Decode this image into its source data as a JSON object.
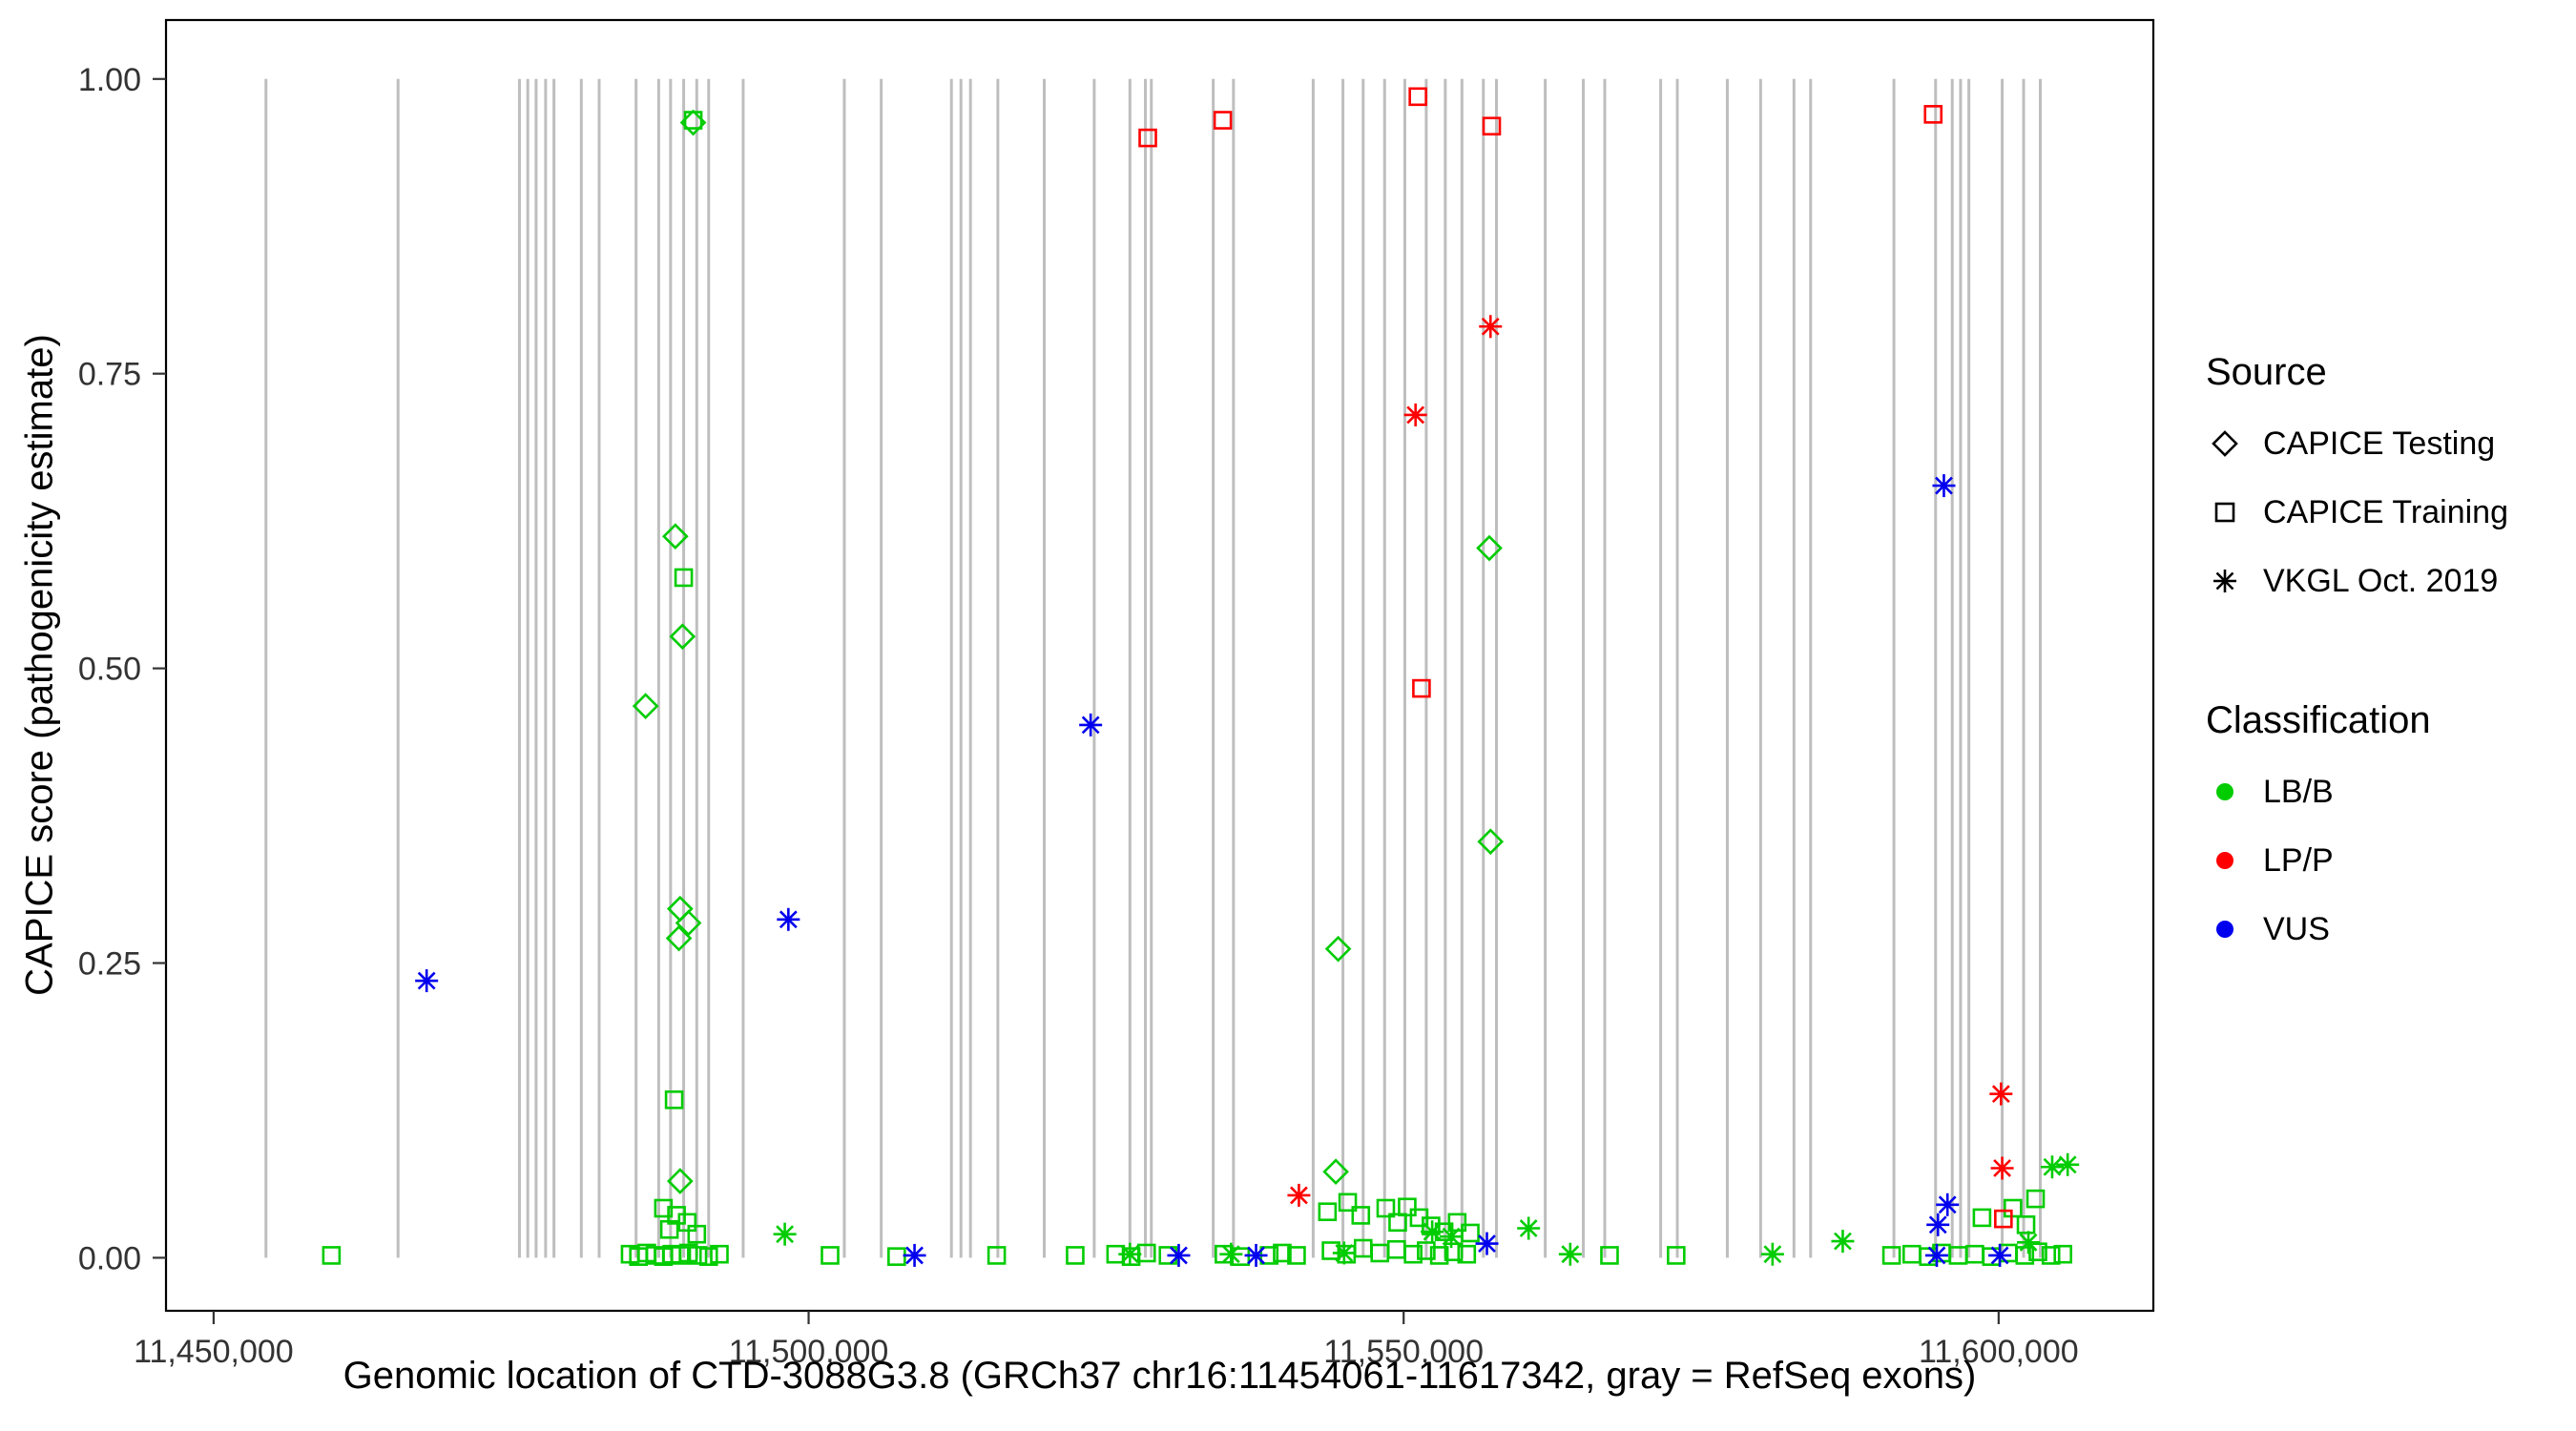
{
  "legend": {
    "source": {
      "title": "Source",
      "items": [
        {
          "label": "CAPICE Testing",
          "marker": "diamond"
        },
        {
          "label": "CAPICE Training",
          "marker": "square"
        },
        {
          "label": "VKGL Oct. 2019",
          "marker": "asterisk"
        }
      ]
    },
    "classification": {
      "title": "Classification",
      "items": [
        {
          "label": "LB/B",
          "color": "#00CC00"
        },
        {
          "label": "LP/P",
          "color": "#FF0000"
        },
        {
          "label": "VUS",
          "color": "#0000EE"
        }
      ]
    }
  },
  "chart_data": {
    "type": "scatter",
    "title": "",
    "xlabel": "Genomic location of CTD-3088G3.8 (GRCh37 chr16:11454061-11617342, gray = RefSeq exons)",
    "ylabel": "CAPICE score (pathogenicity estimate)",
    "xlim": [
      11446000,
      11613000
    ],
    "ylim": [
      -0.045,
      1.05
    ],
    "grid": "off",
    "legend_position": "right",
    "panel_border_color": "#000000",
    "tick_text_color": "#333333",
    "exon_color": "#BEBEBE",
    "exon_note": "gray vertical lines = RefSeq exons, drawn from y=0 to y=1",
    "x_ticks": [
      {
        "value": 11450000,
        "label": "11,450,000"
      },
      {
        "value": 11500000,
        "label": "11,500,000"
      },
      {
        "value": 11550000,
        "label": "11,550,000"
      },
      {
        "value": 11600000,
        "label": "11,600,000"
      }
    ],
    "y_ticks": [
      {
        "value": 0.0,
        "label": "0.00"
      },
      {
        "value": 0.25,
        "label": "0.25"
      },
      {
        "value": 0.5,
        "label": "0.50"
      },
      {
        "value": 0.75,
        "label": "0.75"
      },
      {
        "value": 1.0,
        "label": "1.00"
      }
    ],
    "exons": [
      11454400,
      11465500,
      11475700,
      11476400,
      11477100,
      11477900,
      11478600,
      11480900,
      11482400,
      11485500,
      11487400,
      11488400,
      11489500,
      11490600,
      11491600,
      11494500,
      11503000,
      11506100,
      11512000,
      11512800,
      11513600,
      11515900,
      11519800,
      11524000,
      11527000,
      11528300,
      11528800,
      11534000,
      11535700,
      11542400,
      11544900,
      11546600,
      11548400,
      11550100,
      11551900,
      11553500,
      11554900,
      11556700,
      11557800,
      11561900,
      11565100,
      11566900,
      11571600,
      11573000,
      11577200,
      11580000,
      11582800,
      11584200,
      11591200,
      11594700,
      11596100,
      11596800,
      11597500,
      11600300,
      11602100,
      11603500
    ],
    "series": [
      {
        "name": "CAPICE Testing / LB/B",
        "source": "CAPICE Testing",
        "classification": "LB/B",
        "marker": "diamond",
        "color": "#00CC00",
        "points": [
          [
            11490300,
            0.963
          ],
          [
            11488800,
            0.612
          ],
          [
            11489400,
            0.527
          ],
          [
            11486300,
            0.468
          ],
          [
            11489200,
            0.296
          ],
          [
            11489900,
            0.284
          ],
          [
            11489100,
            0.271
          ],
          [
            11489200,
            0.065
          ],
          [
            11544500,
            0.262
          ],
          [
            11544300,
            0.073
          ],
          [
            11557200,
            0.602
          ],
          [
            11557300,
            0.353
          ]
        ]
      },
      {
        "name": "CAPICE Training / LB/B",
        "source": "CAPICE Training",
        "classification": "LB/B",
        "marker": "square",
        "color": "#00CC00",
        "points": [
          [
            11490300,
            0.965
          ],
          [
            11489500,
            0.577
          ],
          [
            11488700,
            0.134
          ],
          [
            11487800,
            0.042
          ],
          [
            11488900,
            0.036
          ],
          [
            11489800,
            0.03
          ],
          [
            11488300,
            0.024
          ],
          [
            11490600,
            0.02
          ],
          [
            11543600,
            0.039
          ],
          [
            11545300,
            0.047
          ],
          [
            11546400,
            0.036
          ],
          [
            11548500,
            0.042
          ],
          [
            11549500,
            0.03
          ],
          [
            11550300,
            0.043
          ],
          [
            11551300,
            0.034
          ],
          [
            11552300,
            0.027
          ],
          [
            11553400,
            0.022
          ],
          [
            11554500,
            0.03
          ],
          [
            11555600,
            0.021
          ],
          [
            11598600,
            0.034
          ],
          [
            11601200,
            0.042
          ],
          [
            11602300,
            0.028
          ],
          [
            11603100,
            0.05
          ],
          [
            11459900,
            0.002
          ],
          [
            11485000,
            0.003
          ],
          [
            11485700,
            0.001
          ],
          [
            11486400,
            0.004
          ],
          [
            11487100,
            0.002
          ],
          [
            11487800,
            0.001
          ],
          [
            11488500,
            0.003
          ],
          [
            11489200,
            0.002
          ],
          [
            11489900,
            0.004
          ],
          [
            11490700,
            0.002
          ],
          [
            11491600,
            0.001
          ],
          [
            11492500,
            0.003
          ],
          [
            11501800,
            0.002
          ],
          [
            11507400,
            0.001
          ],
          [
            11515800,
            0.002
          ],
          [
            11522400,
            0.002
          ],
          [
            11525800,
            0.003
          ],
          [
            11527100,
            0.001
          ],
          [
            11528400,
            0.004
          ],
          [
            11530200,
            0.002
          ],
          [
            11534900,
            0.003
          ],
          [
            11536300,
            0.001
          ],
          [
            11538700,
            0.002
          ],
          [
            11539800,
            0.004
          ],
          [
            11541000,
            0.002
          ],
          [
            11543900,
            0.006
          ],
          [
            11545200,
            0.003
          ],
          [
            11546600,
            0.008
          ],
          [
            11548000,
            0.004
          ],
          [
            11549400,
            0.007
          ],
          [
            11550800,
            0.003
          ],
          [
            11551900,
            0.006
          ],
          [
            11553000,
            0.002
          ],
          [
            11554200,
            0.005
          ],
          [
            11555300,
            0.003
          ],
          [
            11567300,
            0.002
          ],
          [
            11572900,
            0.002
          ],
          [
            11591000,
            0.002
          ],
          [
            11592700,
            0.003
          ],
          [
            11594100,
            0.001
          ],
          [
            11595200,
            0.004
          ],
          [
            11596600,
            0.002
          ],
          [
            11598000,
            0.003
          ],
          [
            11599400,
            0.001
          ],
          [
            11600800,
            0.004
          ],
          [
            11602200,
            0.002
          ],
          [
            11603300,
            0.005
          ],
          [
            11604400,
            0.002
          ],
          [
            11605400,
            0.003
          ]
        ]
      },
      {
        "name": "CAPICE Training / LP/P",
        "source": "CAPICE Training",
        "classification": "LP/P",
        "marker": "square",
        "color": "#FF0000",
        "points": [
          [
            11528500,
            0.95
          ],
          [
            11534800,
            0.965
          ],
          [
            11551200,
            0.985
          ],
          [
            11557400,
            0.96
          ],
          [
            11551500,
            0.483
          ],
          [
            11594500,
            0.97
          ],
          [
            11600400,
            0.033
          ]
        ]
      },
      {
        "name": "VKGL Oct. 2019 / LB/B",
        "source": "VKGL Oct. 2019",
        "classification": "LB/B",
        "marker": "asterisk",
        "color": "#00CC00",
        "points": [
          [
            11498000,
            0.02
          ],
          [
            11527000,
            0.003
          ],
          [
            11535500,
            0.003
          ],
          [
            11545000,
            0.004
          ],
          [
            11552400,
            0.022
          ],
          [
            11554000,
            0.018
          ],
          [
            11560500,
            0.025
          ],
          [
            11564000,
            0.003
          ],
          [
            11581000,
            0.003
          ],
          [
            11586900,
            0.014
          ],
          [
            11602500,
            0.013
          ],
          [
            11604500,
            0.077
          ],
          [
            11605800,
            0.079
          ]
        ]
      },
      {
        "name": "VKGL Oct. 2019 / LP/P",
        "source": "VKGL Oct. 2019",
        "classification": "LP/P",
        "marker": "asterisk",
        "color": "#FF0000",
        "points": [
          [
            11541200,
            0.053
          ],
          [
            11551000,
            0.715
          ],
          [
            11557300,
            0.79
          ],
          [
            11600200,
            0.139
          ],
          [
            11600300,
            0.076
          ]
        ]
      },
      {
        "name": "VKGL Oct. 2019 / VUS",
        "source": "VKGL Oct. 2019",
        "classification": "VUS",
        "marker": "asterisk",
        "color": "#0000EE",
        "points": [
          [
            11467900,
            0.235
          ],
          [
            11498300,
            0.287
          ],
          [
            11508900,
            0.002
          ],
          [
            11523700,
            0.452
          ],
          [
            11531100,
            0.002
          ],
          [
            11537600,
            0.002
          ],
          [
            11557000,
            0.012
          ],
          [
            11594800,
            0.002
          ],
          [
            11594900,
            0.028
          ],
          [
            11595400,
            0.655
          ],
          [
            11595700,
            0.045
          ],
          [
            11600100,
            0.002
          ]
        ]
      }
    ]
  }
}
